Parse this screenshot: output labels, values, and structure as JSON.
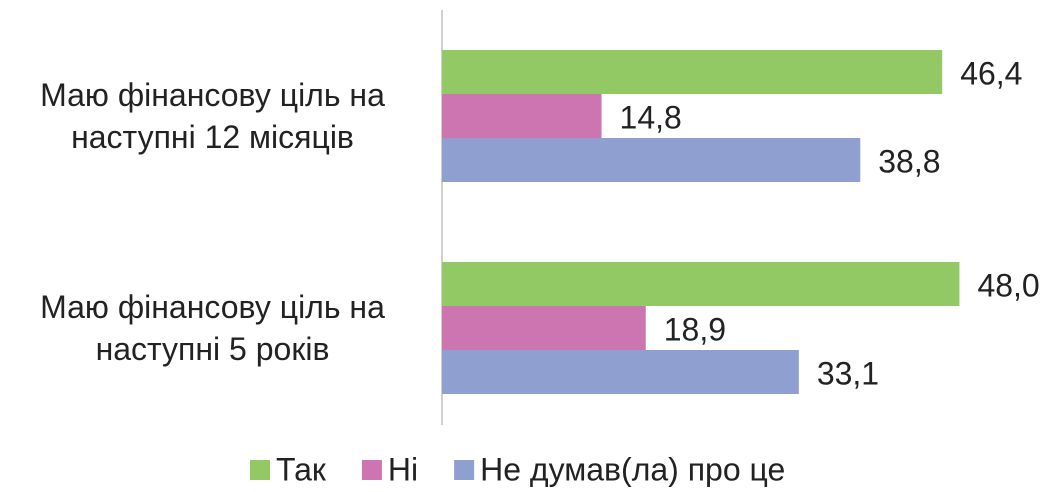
{
  "chart_data": {
    "type": "bar",
    "orientation": "horizontal",
    "categories": [
      "Маю фінансову ціль на наступні 12 місяців",
      "Маю фінансову ціль на наступні 5 років"
    ],
    "series": [
      {
        "name": "Так",
        "color": "#92c965",
        "values": [
          46.4,
          48.0
        ],
        "value_labels": [
          "46,4",
          "48,0"
        ]
      },
      {
        "name": "Ні",
        "color": "#cd75b0",
        "values": [
          14.8,
          18.9
        ],
        "value_labels": [
          "14,8",
          "18,9"
        ]
      },
      {
        "name": "Не думав(ла) про це",
        "color": "#8fa0d0",
        "values": [
          38.8,
          33.1
        ],
        "value_labels": [
          "38,8",
          "33,1"
        ]
      }
    ],
    "xlim": [
      0,
      50
    ],
    "legend": "bottom"
  }
}
